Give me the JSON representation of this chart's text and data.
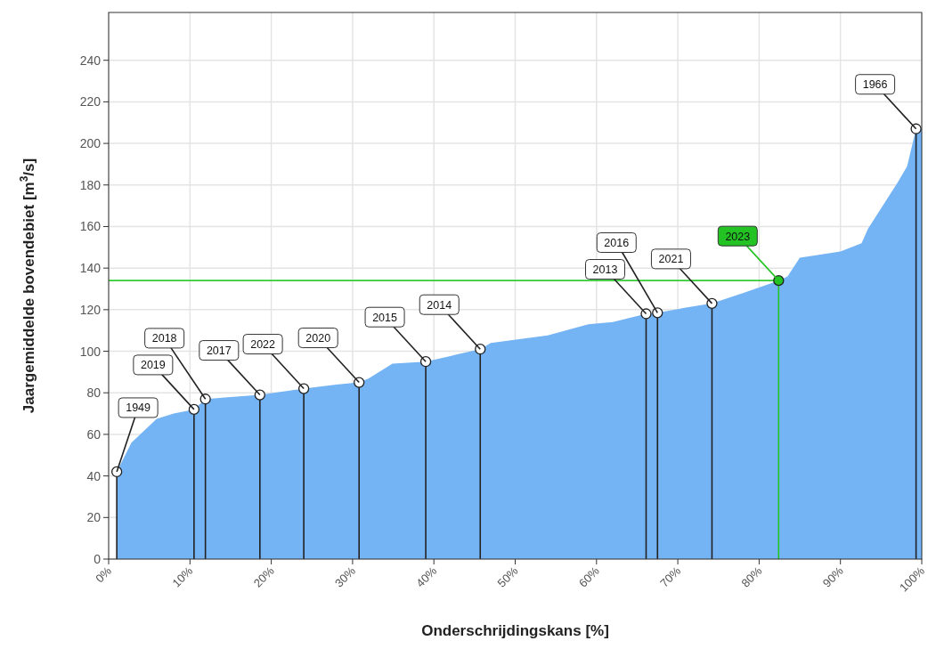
{
  "chart_data": {
    "type": "area",
    "xlabel": "Onderschrijdingskans [%]",
    "ylabel": "Jaargemiddelde bovendebiet [m$^{3}$/s]",
    "xlim": [
      0,
      100
    ],
    "ylim": [
      0,
      263
    ],
    "xticks": [
      {
        "value": 0,
        "label": "0%"
      },
      {
        "value": 10,
        "label": "10%"
      },
      {
        "value": 20,
        "label": "20%"
      },
      {
        "value": 30,
        "label": "30%"
      },
      {
        "value": 40,
        "label": "40%"
      },
      {
        "value": 50,
        "label": "50%"
      },
      {
        "value": 60,
        "label": "60%"
      },
      {
        "value": 70,
        "label": "70%"
      },
      {
        "value": 80,
        "label": "80%"
      },
      {
        "value": 90,
        "label": "90%"
      },
      {
        "value": 100,
        "label": "100%"
      }
    ],
    "yticks": [
      0,
      20,
      40,
      60,
      80,
      100,
      120,
      140,
      160,
      180,
      200,
      220,
      240
    ],
    "grid": true,
    "series": [
      {
        "color": "#74b4f5",
        "x": [
          1,
          2.8,
          5.9,
          8,
          10.5,
          11.9,
          15,
          18.6,
          24,
          28,
          30.8,
          32,
          34.9,
          39,
          45.7,
          47,
          54,
          59,
          62,
          66.1,
          67.5,
          71,
          74.2,
          78,
          82.4,
          83.5,
          85,
          90,
          92.6,
          93.4,
          97,
          98.2,
          99.3,
          100
        ],
        "values": [
          42,
          56,
          67.5,
          70,
          72,
          77,
          78,
          79,
          82,
          84,
          85,
          87,
          94,
          95,
          101,
          104,
          107.6,
          113,
          114,
          118,
          118.5,
          121,
          123,
          128,
          134,
          136,
          145,
          148,
          152,
          159,
          181,
          189,
          207,
          207
        ]
      },
      {
        "type": "lollipop",
        "color": "#ffffff",
        "x": [
          1,
          10.5,
          11.9,
          18.6,
          24,
          30.8,
          39,
          45.7,
          66.1,
          67.5,
          74.2,
          99.3
        ],
        "values": [
          42,
          72,
          77,
          79,
          82,
          85,
          95,
          101,
          118,
          118.5,
          123,
          207
        ]
      },
      {
        "type": "lollipop",
        "color": "#22c322",
        "x": [
          82.4
        ],
        "values": [
          134
        ]
      }
    ],
    "ref_lines": [
      {
        "axis": "y",
        "value": 134,
        "color": "#33cc33"
      }
    ],
    "annotations": [
      {
        "text": "1949",
        "x": 1,
        "y": 42
      },
      {
        "text": "2019",
        "x": 10.5,
        "y": 72
      },
      {
        "text": "2018",
        "x": 11.9,
        "y": 77
      },
      {
        "text": "2017",
        "x": 18.6,
        "y": 79
      },
      {
        "text": "2022",
        "x": 24,
        "y": 82
      },
      {
        "text": "2020",
        "x": 30.8,
        "y": 85
      },
      {
        "text": "2015",
        "x": 39,
        "y": 95
      },
      {
        "text": "2014",
        "x": 45.7,
        "y": 101
      },
      {
        "text": "2013",
        "x": 66.1,
        "y": 118
      },
      {
        "text": "2016",
        "x": 67.5,
        "y": 118.5
      },
      {
        "text": "2021",
        "x": 74.2,
        "y": 123
      },
      {
        "text": "2023",
        "x": 82.4,
        "y": 134
      },
      {
        "text": "1966",
        "x": 99.3,
        "y": 207
      }
    ]
  }
}
